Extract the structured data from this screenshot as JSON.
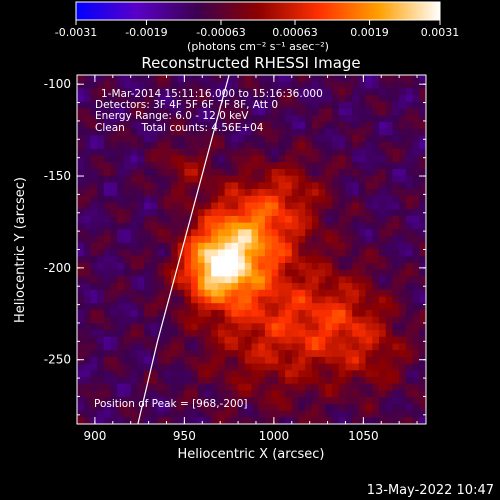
{
  "chart_data": {
    "type": "heatmap",
    "title": "Reconstructed RHESSI Image",
    "xlabel": "Heliocentric X (arcsec)",
    "ylabel": "Heliocentric Y (arcsec)",
    "xlim": [
      890,
      1085
    ],
    "ylim": [
      -285,
      -95
    ],
    "x_ticks": [
      900,
      950,
      1000,
      1050
    ],
    "y_ticks": [
      -100,
      -150,
      -200,
      -250
    ],
    "colorbar": {
      "ticks": [
        "-0.0031",
        "-0.0019",
        "-0.00063",
        "0.00063",
        "0.0019",
        "0.0031"
      ],
      "min": -0.0031,
      "max": 0.0031,
      "unit_label": "(photons cm⁻² s⁻¹ asec⁻²)",
      "colors": [
        "#0000ff",
        "#5a00c8",
        "#3c0050",
        "#8c0000",
        "#ff3000",
        "#ffa000",
        "#ffffff"
      ]
    },
    "annotations": [
      "1-Mar-2014 15:11:16.000 to 15:16:36.000",
      "Detectors: 3F 4F 5F 6F 7F 8F, Att 0",
      "Energy Range: 6.0 - 12.0 keV",
      "Clean     Total counts: 4.56E+04"
    ],
    "peak_label": "Position of Peak = [968,-200]",
    "peak": [
      968,
      -200
    ],
    "limb_curve": [
      [
        924,
        -285
      ],
      [
        935,
        -240
      ],
      [
        946,
        -200
      ],
      [
        957,
        -160
      ],
      [
        968,
        -120
      ],
      [
        975,
        -95
      ]
    ],
    "sources": [
      {
        "x": 968,
        "y": -200,
        "amplitude": 0.0031,
        "sigma": 14
      },
      {
        "x": 985,
        "y": -180,
        "amplitude": 0.0022,
        "sigma": 18
      },
      {
        "x": 1000,
        "y": -230,
        "amplitude": 0.0016,
        "sigma": 28
      },
      {
        "x": 1040,
        "y": -230,
        "amplitude": 0.0012,
        "sigma": 18
      },
      {
        "x": 1010,
        "y": -160,
        "amplitude": 0.001,
        "sigma": 15
      },
      {
        "x": 950,
        "y": -145,
        "amplitude": 0.0009,
        "sigma": 10
      },
      {
        "x": 1060,
        "y": -250,
        "amplitude": 0.0006,
        "sigma": 14
      }
    ],
    "background": -0.001
  },
  "footer": {
    "timestamp": "13-May-2022 10:47"
  }
}
